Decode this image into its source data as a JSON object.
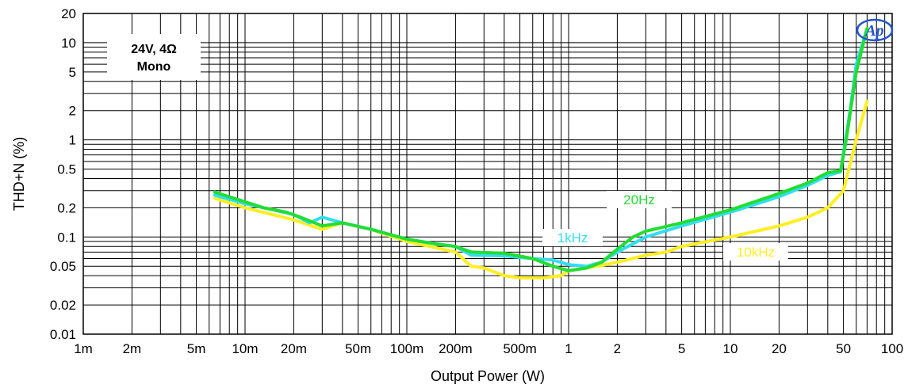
{
  "chart_data": {
    "type": "line",
    "title": "",
    "xlabel": "Output Power (W)",
    "ylabel": "THD+N (%)",
    "xscale": "log",
    "yscale": "log",
    "xlim": [
      0.001,
      100
    ],
    "ylim": [
      0.01,
      20
    ],
    "grid": true,
    "x_ticks": [
      {
        "v": 0.001,
        "label": "1m"
      },
      {
        "v": 0.002,
        "label": "2m"
      },
      {
        "v": 0.005,
        "label": "5m"
      },
      {
        "v": 0.01,
        "label": "10m"
      },
      {
        "v": 0.02,
        "label": "20m"
      },
      {
        "v": 0.05,
        "label": "50m"
      },
      {
        "v": 0.1,
        "label": "100m"
      },
      {
        "v": 0.2,
        "label": "200m"
      },
      {
        "v": 0.5,
        "label": "500m"
      },
      {
        "v": 1,
        "label": "1"
      },
      {
        "v": 2,
        "label": "2"
      },
      {
        "v": 5,
        "label": "5"
      },
      {
        "v": 10,
        "label": "10"
      },
      {
        "v": 20,
        "label": "20"
      },
      {
        "v": 50,
        "label": "50"
      },
      {
        "v": 100,
        "label": "100"
      }
    ],
    "y_ticks": [
      {
        "v": 0.01,
        "label": "0.01"
      },
      {
        "v": 0.02,
        "label": "0.02"
      },
      {
        "v": 0.05,
        "label": "0.05"
      },
      {
        "v": 0.1,
        "label": "0.1"
      },
      {
        "v": 0.2,
        "label": "0.2"
      },
      {
        "v": 0.5,
        "label": "0.5"
      },
      {
        "v": 1,
        "label": "1"
      },
      {
        "v": 2,
        "label": "2"
      },
      {
        "v": 5,
        "label": "5"
      },
      {
        "v": 10,
        "label": "10"
      },
      {
        "v": 20,
        "label": "20"
      }
    ],
    "annotation_lines": [
      "24V, 4Ω",
      "Mono"
    ],
    "logo": "Ap",
    "series": [
      {
        "name": "1kHz",
        "color": "#33ddee",
        "label_bg": "#33ddee",
        "label_color": "#ffffff",
        "points": [
          [
            0.0065,
            0.27
          ],
          [
            0.01,
            0.22
          ],
          [
            0.015,
            0.19
          ],
          [
            0.02,
            0.17
          ],
          [
            0.025,
            0.14
          ],
          [
            0.03,
            0.16
          ],
          [
            0.04,
            0.14
          ],
          [
            0.06,
            0.12
          ],
          [
            0.1,
            0.095
          ],
          [
            0.15,
            0.085
          ],
          [
            0.2,
            0.08
          ],
          [
            0.25,
            0.065
          ],
          [
            0.4,
            0.064
          ],
          [
            0.6,
            0.06
          ],
          [
            0.8,
            0.058
          ],
          [
            1.0,
            0.052
          ],
          [
            1.3,
            0.05
          ],
          [
            1.6,
            0.055
          ],
          [
            2.0,
            0.07
          ],
          [
            3.0,
            0.1
          ],
          [
            5.0,
            0.13
          ],
          [
            10,
            0.18
          ],
          [
            20,
            0.26
          ],
          [
            30,
            0.34
          ],
          [
            40,
            0.43
          ],
          [
            48,
            0.47
          ],
          [
            55,
            2.0
          ],
          [
            60,
            6.0
          ],
          [
            70,
            14
          ]
        ]
      },
      {
        "name": "20Hz",
        "color": "#22dd33",
        "label_bg": "#22dd33",
        "label_color": "#ffffff",
        "points": [
          [
            0.0065,
            0.29
          ],
          [
            0.01,
            0.23
          ],
          [
            0.013,
            0.2
          ],
          [
            0.018,
            0.18
          ],
          [
            0.022,
            0.16
          ],
          [
            0.03,
            0.13
          ],
          [
            0.04,
            0.14
          ],
          [
            0.06,
            0.12
          ],
          [
            0.1,
            0.095
          ],
          [
            0.15,
            0.085
          ],
          [
            0.2,
            0.08
          ],
          [
            0.25,
            0.07
          ],
          [
            0.4,
            0.068
          ],
          [
            0.6,
            0.06
          ],
          [
            0.8,
            0.05
          ],
          [
            1.0,
            0.045
          ],
          [
            1.3,
            0.048
          ],
          [
            1.6,
            0.055
          ],
          [
            2.0,
            0.075
          ],
          [
            2.5,
            0.1
          ],
          [
            3.0,
            0.115
          ],
          [
            5.0,
            0.14
          ],
          [
            10,
            0.19
          ],
          [
            20,
            0.28
          ],
          [
            30,
            0.36
          ],
          [
            40,
            0.46
          ],
          [
            48,
            0.48
          ],
          [
            52,
            1.0
          ],
          [
            60,
            5.0
          ],
          [
            70,
            14
          ]
        ]
      },
      {
        "name": "10kHz",
        "color": "#ffee22",
        "label_bg": "#ffee22",
        "label_color": "#ffffff",
        "points": [
          [
            0.0065,
            0.25
          ],
          [
            0.01,
            0.2
          ],
          [
            0.02,
            0.15
          ],
          [
            0.03,
            0.12
          ],
          [
            0.04,
            0.14
          ],
          [
            0.06,
            0.12
          ],
          [
            0.1,
            0.09
          ],
          [
            0.2,
            0.07
          ],
          [
            0.25,
            0.05
          ],
          [
            0.3,
            0.048
          ],
          [
            0.4,
            0.04
          ],
          [
            0.5,
            0.038
          ],
          [
            0.7,
            0.038
          ],
          [
            0.9,
            0.04
          ],
          [
            1.0,
            0.045
          ],
          [
            1.5,
            0.05
          ],
          [
            2.0,
            0.055
          ],
          [
            3.0,
            0.065
          ],
          [
            4.0,
            0.07
          ],
          [
            5.0,
            0.08
          ],
          [
            10,
            0.1
          ],
          [
            20,
            0.13
          ],
          [
            30,
            0.16
          ],
          [
            40,
            0.2
          ],
          [
            50,
            0.3
          ],
          [
            60,
            1.0
          ],
          [
            70,
            2.5
          ]
        ]
      }
    ]
  }
}
